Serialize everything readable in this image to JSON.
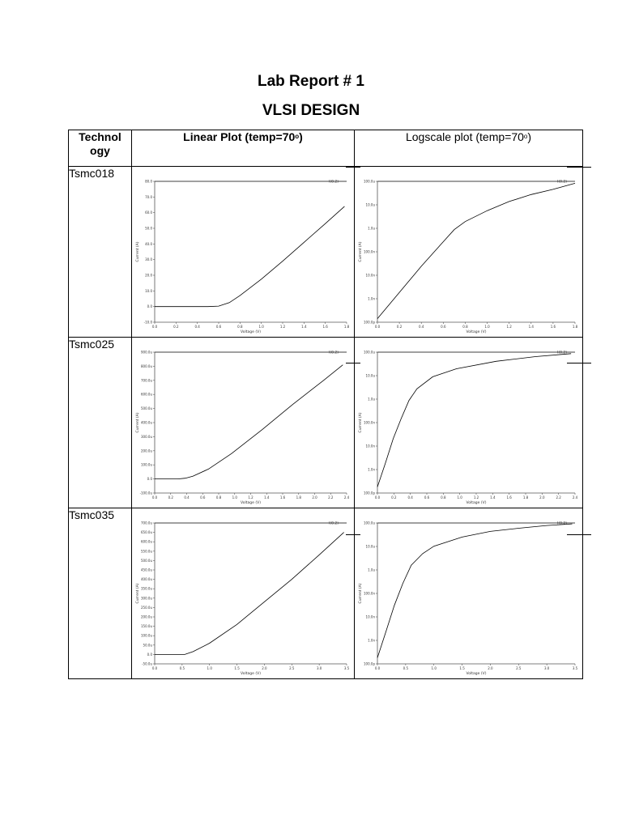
{
  "title": "Lab Report # 1",
  "subtitle": "VLSI DESIGN",
  "table": {
    "headers": {
      "technology_line1": "Technol",
      "technology_line2": "ogy",
      "linear_prefix": "Linear Plot (temp=70",
      "linear_degree": "o",
      "linear_suffix": ")",
      "log_prefix": "Logscale plot (temp=70",
      "log_degree": "o",
      "log_suffix": ")"
    },
    "rows": [
      {
        "technology": "Tsmc018"
      },
      {
        "technology": "Tsmc025"
      },
      {
        "technology": "Tsmc035"
      }
    ]
  },
  "chart_data": [
    {
      "id": "tsmc018-linear",
      "type": "line",
      "scale": "linear",
      "xlabel": "Voltage (V)",
      "ylabel": "Current (A)",
      "x_ticks": [
        "0.0",
        "0.2",
        "0.4",
        "0.6",
        "0.8",
        "1.0",
        "1.2",
        "1.4",
        "1.6",
        "1.8"
      ],
      "y_ticks": [
        "80.0",
        "70.0",
        "60.0",
        "50.0",
        "40.0",
        "30.0",
        "20.0",
        "10.0",
        "0.0",
        "-10.0"
      ],
      "xlim": [
        0,
        1.8
      ],
      "ylim": [
        -10,
        80
      ],
      "reference_label": "I(0.2)",
      "reference_y": 80,
      "series": [
        {
          "x": [
            0,
            0.5,
            0.6,
            0.7,
            0.8,
            1.0,
            1.2,
            1.4,
            1.6,
            1.78
          ],
          "y": [
            0,
            0,
            0.3,
            2.5,
            7,
            17.5,
            29,
            41,
            53,
            64
          ]
        }
      ]
    },
    {
      "id": "tsmc018-log",
      "type": "line",
      "scale": "log",
      "xlabel": "Voltage (V)",
      "ylabel": "Current (A)",
      "x_ticks": [
        "0.0",
        "0.2",
        "0.4",
        "0.6",
        "0.8",
        "1.0",
        "1.2",
        "1.4",
        "1.6",
        "1.8"
      ],
      "y_ticks": [
        "100.0u",
        "10.0u",
        "1.0u",
        "100.0n",
        "10.0n",
        "1.0n",
        "100.0p"
      ],
      "xlim": [
        0,
        1.8
      ],
      "ylim": [
        1e-10,
        0.001
      ],
      "reference_label": "I(0.2)",
      "reference_y": 0.001,
      "series": [
        {
          "x": [
            0,
            0.2,
            0.4,
            0.6,
            0.7,
            0.8,
            1.0,
            1.2,
            1.4,
            1.6,
            1.8
          ],
          "y": [
            1.5e-10,
            3e-09,
            6e-08,
            1e-06,
            4e-06,
            1e-05,
            3.5e-05,
            0.0001,
            0.00022,
            0.0004,
            0.0008
          ]
        }
      ]
    },
    {
      "id": "tsmc025-linear",
      "type": "line",
      "scale": "linear",
      "xlabel": "Voltage (V)",
      "ylabel": "Current (A)",
      "x_ticks": [
        "0.0",
        "0.2",
        "0.4",
        "0.6",
        "0.8",
        "1.0",
        "1.2",
        "1.4",
        "1.6",
        "1.8",
        "2.0",
        "2.2",
        "2.4"
      ],
      "y_ticks": [
        "900.0u",
        "800.0u",
        "700.0u",
        "600.0u",
        "500.0u",
        "400.0u",
        "300.0u",
        "200.0u",
        "100.0u",
        "0.0",
        "-100.0u"
      ],
      "xlim": [
        0,
        2.5
      ],
      "ylim": [
        -100,
        900
      ],
      "reference_label": "I(0.2)",
      "reference_y": 900,
      "series": [
        {
          "x": [
            0,
            0.3,
            0.4,
            0.5,
            0.7,
            1.0,
            1.4,
            1.8,
            2.2,
            2.45
          ],
          "y": [
            0,
            0,
            5,
            20,
            70,
            180,
            350,
            530,
            700,
            810
          ]
        }
      ]
    },
    {
      "id": "tsmc025-log",
      "type": "line",
      "scale": "log",
      "xlabel": "Voltage (V)",
      "ylabel": "Current (A)",
      "x_ticks": [
        "0.0",
        "0.2",
        "0.4",
        "0.6",
        "0.8",
        "1.0",
        "1.2",
        "1.4",
        "1.6",
        "1.8",
        "2.0",
        "2.2",
        "2.4"
      ],
      "y_ticks": [
        "100.0u",
        "10.0u",
        "1.0u",
        "100.0n",
        "10.0n",
        "1.0n",
        "100.0p"
      ],
      "xlim": [
        0,
        2.5
      ],
      "ylim": [
        1e-10,
        0.001
      ],
      "reference_label": "I(0.2)",
      "reference_y": 0.001,
      "series": [
        {
          "x": [
            0,
            0.1,
            0.2,
            0.3,
            0.4,
            0.5,
            0.7,
            1.0,
            1.5,
            2.0,
            2.45
          ],
          "y": [
            2e-10,
            3e-09,
            5e-08,
            5e-07,
            4e-06,
            1.5e-05,
            6e-05,
            0.00015,
            0.00035,
            0.0006,
            0.00085
          ]
        }
      ]
    },
    {
      "id": "tsmc035-linear",
      "type": "line",
      "scale": "linear",
      "xlabel": "Voltage (V)",
      "ylabel": "Current (A)",
      "x_ticks": [
        "0.0",
        "0.5",
        "1.0",
        "1.5",
        "2.0",
        "2.5",
        "3.0",
        "3.5"
      ],
      "y_ticks": [
        "700.0u",
        "650.0u",
        "600.0u",
        "550.0u",
        "500.0u",
        "450.0u",
        "400.0u",
        "350.0u",
        "300.0u",
        "250.0u",
        "200.0u",
        "150.0u",
        "100.0u",
        "50.0u",
        "0.0",
        "-50.0u"
      ],
      "xlim": [
        0,
        3.5
      ],
      "ylim": [
        -50,
        700
      ],
      "reference_label": "I(0.2)",
      "reference_y": 700,
      "series": [
        {
          "x": [
            0,
            0.55,
            0.7,
            1.0,
            1.5,
            2.0,
            2.5,
            3.0,
            3.45
          ],
          "y": [
            0,
            0,
            15,
            60,
            160,
            280,
            400,
            530,
            650
          ]
        }
      ]
    },
    {
      "id": "tsmc035-log",
      "type": "line",
      "scale": "log",
      "xlabel": "Voltage (V)",
      "ylabel": "Current (A)",
      "x_ticks": [
        "0.0",
        "0.5",
        "1.0",
        "1.5",
        "2.0",
        "2.5",
        "3.0",
        "3.5"
      ],
      "y_ticks": [
        "100.0u",
        "10.0u",
        "1.0u",
        "100.0n",
        "10.0n",
        "1.0n",
        "100.0p"
      ],
      "xlim": [
        0,
        3.5
      ],
      "ylim": [
        1e-10,
        0.001
      ],
      "reference_label": "I(0.2)",
      "reference_y": 0.001,
      "series": [
        {
          "x": [
            0,
            0.15,
            0.3,
            0.45,
            0.6,
            0.8,
            1.0,
            1.5,
            2.0,
            2.5,
            3.0,
            3.45
          ],
          "y": [
            2e-10,
            4e-09,
            8e-08,
            1e-06,
            8e-06,
            3e-05,
            7e-05,
            0.0002,
            0.00038,
            0.00055,
            0.00075,
            0.0009
          ]
        }
      ]
    }
  ]
}
